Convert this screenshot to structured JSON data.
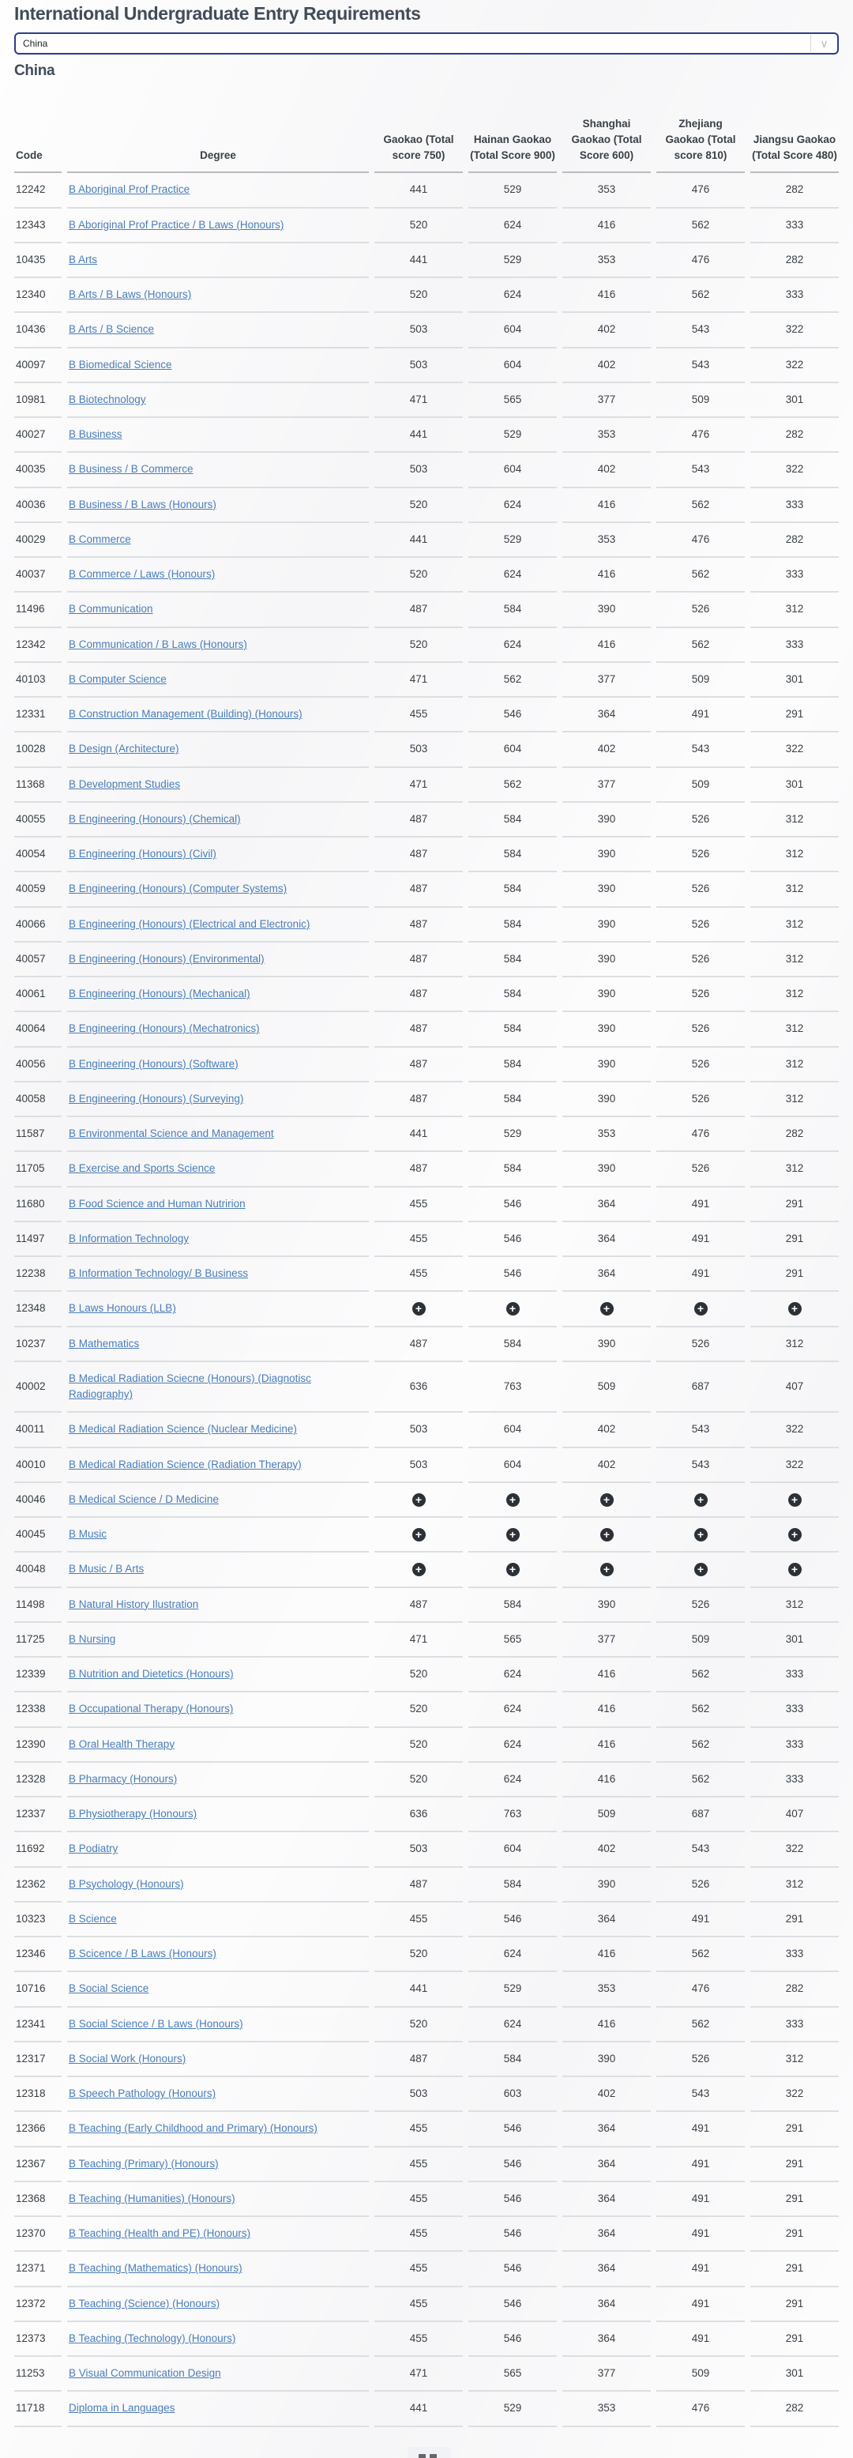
{
  "page": {
    "title": "International Undergraduate Entry Requirements",
    "country_select": {
      "value": "China"
    },
    "heading": "China"
  },
  "icons": {
    "select_chevron": "∨",
    "plus_glyph": "+"
  },
  "colors": {
    "title": "#414c58",
    "link": "#4a7db8",
    "text": "#3a4046",
    "select_border": "#2d3c8e",
    "row_border": "#dcdee0",
    "header_border": "#b8bcc0",
    "plus_icon_bg": "#2c3137"
  },
  "table": {
    "columns": [
      "Code",
      "Degree",
      "Gaokao (Total score 750)",
      "Hainan Gaokao (Total Score 900)",
      "Shanghai Gaokao (Total Score 600)",
      "Zhejiang Gaokao (Total score 810)",
      "Jiangsu Gaokao (Total Score 480)"
    ],
    "plus_token": "+",
    "rows": [
      [
        "12242",
        "B Aboriginal Prof Practice",
        "441",
        "529",
        "353",
        "476",
        "282"
      ],
      [
        "12343",
        "B Aboriginal Prof Practice / B Laws (Honours)",
        "520",
        "624",
        "416",
        "562",
        "333"
      ],
      [
        "10435",
        "B Arts",
        "441",
        "529",
        "353",
        "476",
        "282"
      ],
      [
        "12340",
        "B Arts / B Laws (Honours)",
        "520",
        "624",
        "416",
        "562",
        "333"
      ],
      [
        "10436",
        "B Arts / B Science",
        "503",
        "604",
        "402",
        "543",
        "322"
      ],
      [
        "40097",
        "B Biomedical Science",
        "503",
        "604",
        "402",
        "543",
        "322"
      ],
      [
        "10981",
        "B Biotechnology",
        "471",
        "565",
        "377",
        "509",
        "301"
      ],
      [
        "40027",
        "B Business",
        "441",
        "529",
        "353",
        "476",
        "282"
      ],
      [
        "40035",
        "B Business / B Commerce",
        "503",
        "604",
        "402",
        "543",
        "322"
      ],
      [
        "40036",
        "B Business / B Laws (Honours)",
        "520",
        "624",
        "416",
        "562",
        "333"
      ],
      [
        "40029",
        "B Commerce",
        "441",
        "529",
        "353",
        "476",
        "282"
      ],
      [
        "40037",
        "B Commerce / Laws (Honours)",
        "520",
        "624",
        "416",
        "562",
        "333"
      ],
      [
        "11496",
        "B Communication",
        "487",
        "584",
        "390",
        "526",
        "312"
      ],
      [
        "12342",
        "B Communication / B Laws (Honours)",
        "520",
        "624",
        "416",
        "562",
        "333"
      ],
      [
        "40103",
        "B Computer Science",
        "471",
        "562",
        "377",
        "509",
        "301"
      ],
      [
        "12331",
        "B Construction Management (Building) (Honours)",
        "455",
        "546",
        "364",
        "491",
        "291"
      ],
      [
        "10028",
        "B Design (Architecture)",
        "503",
        "604",
        "402",
        "543",
        "322"
      ],
      [
        "11368",
        "B Development Studies",
        "471",
        "562",
        "377",
        "509",
        "301"
      ],
      [
        "40055",
        "B Engineering (Honours) (Chemical)",
        "487",
        "584",
        "390",
        "526",
        "312"
      ],
      [
        "40054",
        "B Engineering (Honours) (Civil)",
        "487",
        "584",
        "390",
        "526",
        "312"
      ],
      [
        "40059",
        "B Engineering (Honours) (Computer Systems)",
        "487",
        "584",
        "390",
        "526",
        "312"
      ],
      [
        "40066",
        "B Engineering (Honours) (Electrical and Electronic)",
        "487",
        "584",
        "390",
        "526",
        "312"
      ],
      [
        "40057",
        "B Engineering (Honours) (Environmental)",
        "487",
        "584",
        "390",
        "526",
        "312"
      ],
      [
        "40061",
        "B Engineering (Honours) (Mechanical)",
        "487",
        "584",
        "390",
        "526",
        "312"
      ],
      [
        "40064",
        "B Engineering (Honours) (Mechatronics)",
        "487",
        "584",
        "390",
        "526",
        "312"
      ],
      [
        "40056",
        "B Engineering (Honours) (Software)",
        "487",
        "584",
        "390",
        "526",
        "312"
      ],
      [
        "40058",
        "B Engineering (Honours) (Surveying)",
        "487",
        "584",
        "390",
        "526",
        "312"
      ],
      [
        "11587",
        "B Environmental Science and Management",
        "441",
        "529",
        "353",
        "476",
        "282"
      ],
      [
        "11705",
        "B Exercise and Sports Science",
        "487",
        "584",
        "390",
        "526",
        "312"
      ],
      [
        "11680",
        "B Food Science and Human Nutririon",
        "455",
        "546",
        "364",
        "491",
        "291"
      ],
      [
        "11497",
        "B Information Technology",
        "455",
        "546",
        "364",
        "491",
        "291"
      ],
      [
        "12238",
        "B Information Technology/ B Business",
        "455",
        "546",
        "364",
        "491",
        "291"
      ],
      [
        "12348",
        "B Laws Honours (LLB)",
        "+",
        "+",
        "+",
        "+",
        "+"
      ],
      [
        "10237",
        "B Mathematics",
        "487",
        "584",
        "390",
        "526",
        "312"
      ],
      [
        "40002",
        "B Medical Radiation Sciecne (Honours) (Diagnotisc Radiography)",
        "636",
        "763",
        "509",
        "687",
        "407"
      ],
      [
        "40011",
        "B Medical Radiation Science (Nuclear Medicine)",
        "503",
        "604",
        "402",
        "543",
        "322"
      ],
      [
        "40010",
        "B Medical Radiation Science (Radiation Therapy)",
        "503",
        "604",
        "402",
        "543",
        "322"
      ],
      [
        "40046",
        "B Medical Science / D Medicine",
        "+",
        "+",
        "+",
        "+",
        "+"
      ],
      [
        "40045",
        "B Music",
        "+",
        "+",
        "+",
        "+",
        "+"
      ],
      [
        "40048",
        "B Music / B Arts",
        "+",
        "+",
        "+",
        "+",
        "+"
      ],
      [
        "11498",
        "B Natural History Ilustration",
        "487",
        "584",
        "390",
        "526",
        "312"
      ],
      [
        "11725",
        "B Nursing",
        "471",
        "565",
        "377",
        "509",
        "301"
      ],
      [
        "12339",
        "B Nutrition and Dietetics (Honours)",
        "520",
        "624",
        "416",
        "562",
        "333"
      ],
      [
        "12338",
        "B Occupational Therapy (Honours)",
        "520",
        "624",
        "416",
        "562",
        "333"
      ],
      [
        "12390",
        "B Oral Health Therapy",
        "520",
        "624",
        "416",
        "562",
        "333"
      ],
      [
        "12328",
        "B Pharmacy (Honours)",
        "520",
        "624",
        "416",
        "562",
        "333"
      ],
      [
        "12337",
        "B Physiotherapy (Honours)",
        "636",
        "763",
        "509",
        "687",
        "407"
      ],
      [
        "11692",
        "B Podiatry",
        "503",
        "604",
        "402",
        "543",
        "322"
      ],
      [
        "12362",
        "B Psychology (Honours)",
        "487",
        "584",
        "390",
        "526",
        "312"
      ],
      [
        "10323",
        "B Science",
        "455",
        "546",
        "364",
        "491",
        "291"
      ],
      [
        "12346",
        "B Scicence / B Laws (Honours)",
        "520",
        "624",
        "416",
        "562",
        "333"
      ],
      [
        "10716",
        "B Social Science",
        "441",
        "529",
        "353",
        "476",
        "282"
      ],
      [
        "12341",
        "B Social Science / B Laws (Honours)",
        "520",
        "624",
        "416",
        "562",
        "333"
      ],
      [
        "12317",
        "B Social Work (Honours)",
        "487",
        "584",
        "390",
        "526",
        "312"
      ],
      [
        "12318",
        "B Speech Pathology (Honours)",
        "503",
        "603",
        "402",
        "543",
        "322"
      ],
      [
        "12366",
        "B Teaching (Early Childhood and Primary) (Honours)",
        "455",
        "546",
        "364",
        "491",
        "291"
      ],
      [
        "12367",
        "B Teaching (Primary) (Honours)",
        "455",
        "546",
        "364",
        "491",
        "291"
      ],
      [
        "12368",
        "B Teaching (Humanities) (Honours)",
        "455",
        "546",
        "364",
        "491",
        "291"
      ],
      [
        "12370",
        "B Teaching (Health and PE) (Honours)",
        "455",
        "546",
        "364",
        "491",
        "291"
      ],
      [
        "12371",
        "B Teaching (Mathematics) (Honours)",
        "455",
        "546",
        "364",
        "491",
        "291"
      ],
      [
        "12372",
        "B Teaching (Science) (Honours)",
        "455",
        "546",
        "364",
        "491",
        "291"
      ],
      [
        "12373",
        "B Teaching (Technology) (Honours)",
        "455",
        "546",
        "364",
        "491",
        "291"
      ],
      [
        "11253",
        "B Visual Communication Design",
        "471",
        "565",
        "377",
        "509",
        "301"
      ],
      [
        "11718",
        "Diploma in Languages",
        "441",
        "529",
        "353",
        "476",
        "282"
      ]
    ]
  }
}
